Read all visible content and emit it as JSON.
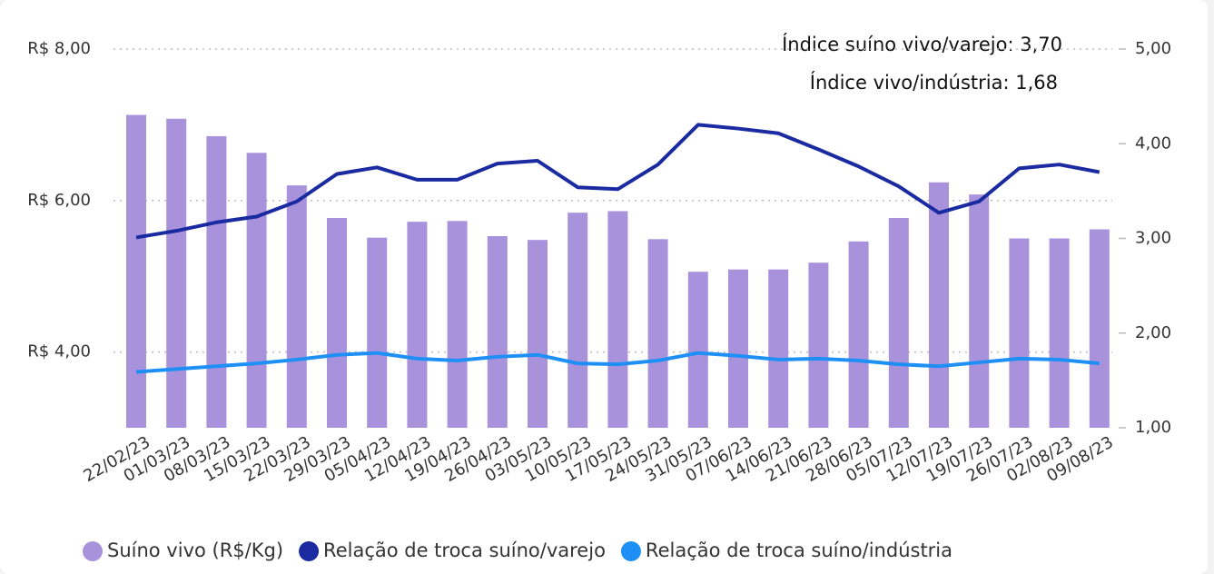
{
  "chart_data": {
    "type": "bar_line",
    "annotations": [
      "Índice suíno vivo/varejo: 3,70",
      "Índice vivo/indústria: 1,68"
    ],
    "categories": [
      "22/02/23",
      "01/03/23",
      "08/03/23",
      "15/03/23",
      "22/03/23",
      "29/03/23",
      "05/04/23",
      "12/04/23",
      "19/04/23",
      "26/04/23",
      "03/05/23",
      "10/05/23",
      "17/05/23",
      "24/05/23",
      "31/05/23",
      "07/06/23",
      "14/06/23",
      "21/06/23",
      "28/06/23",
      "05/07/23",
      "12/07/23",
      "19/07/23",
      "26/07/23",
      "02/08/23",
      "09/08/23"
    ],
    "series": [
      {
        "name": "Suíno vivo (R$/Kg)",
        "type": "bar",
        "color": "#a992dc",
        "values": [
          7.13,
          7.08,
          6.85,
          6.63,
          6.2,
          5.77,
          5.51,
          5.72,
          5.73,
          5.53,
          5.48,
          5.84,
          5.86,
          5.49,
          5.06,
          5.09,
          5.09,
          5.18,
          5.46,
          5.77,
          6.24,
          6.08,
          5.5,
          5.5,
          5.62
        ]
      },
      {
        "name": "Relação de troca suíno/varejo",
        "type": "line",
        "axis": "y2",
        "color": "#1a2aa0",
        "values": [
          3.01,
          3.08,
          3.17,
          3.23,
          3.39,
          3.68,
          3.75,
          3.62,
          3.62,
          3.79,
          3.82,
          3.54,
          3.52,
          3.78,
          4.2,
          4.16,
          4.11,
          3.94,
          3.76,
          3.55,
          3.27,
          3.39,
          3.74,
          3.78,
          3.7
        ]
      },
      {
        "name": "Relação de troca suíno/indústria",
        "type": "line",
        "axis": "y2",
        "color": "#1e90f5",
        "values": [
          1.59,
          1.62,
          1.65,
          1.68,
          1.72,
          1.77,
          1.79,
          1.73,
          1.71,
          1.75,
          1.77,
          1.68,
          1.67,
          1.71,
          1.79,
          1.76,
          1.72,
          1.73,
          1.71,
          1.67,
          1.65,
          1.69,
          1.73,
          1.72,
          1.68
        ]
      }
    ],
    "ylim": [
      3,
      8
    ],
    "yticks": [
      {
        "value": 4,
        "label": "R$ 4,00"
      },
      {
        "value": 6,
        "label": "R$ 6,00"
      },
      {
        "value": 8,
        "label": "R$ 8,00"
      }
    ],
    "y2lim": [
      1,
      5
    ],
    "y2ticks": [
      {
        "value": 1,
        "label": "1,00"
      },
      {
        "value": 2,
        "label": "2,00"
      },
      {
        "value": 3,
        "label": "3,00"
      },
      {
        "value": 4,
        "label": "4,00"
      },
      {
        "value": 5,
        "label": "5,00"
      }
    ],
    "grid": true,
    "legend": "bottom"
  }
}
